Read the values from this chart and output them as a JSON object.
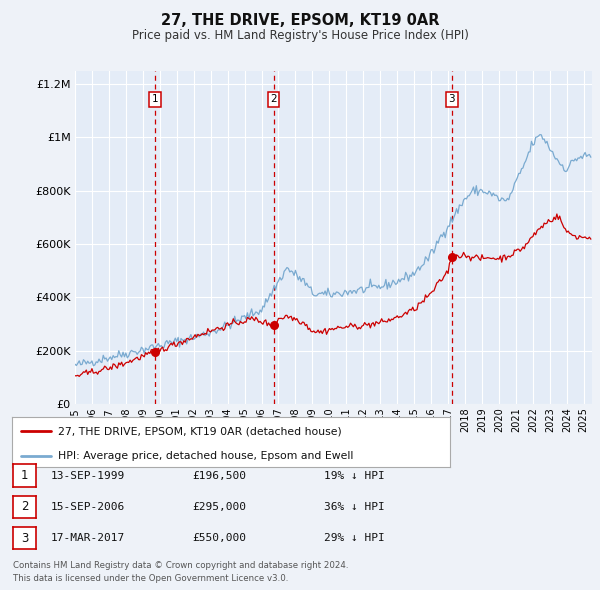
{
  "title": "27, THE DRIVE, EPSOM, KT19 0AR",
  "subtitle": "Price paid vs. HM Land Registry's House Price Index (HPI)",
  "bg_color": "#eef2f8",
  "plot_bg_color": "#e4ecf7",
  "grid_color": "#ffffff",
  "ylim": [
    0,
    1250000
  ],
  "xlim_start": 1995.0,
  "xlim_end": 2025.5,
  "yticks": [
    0,
    200000,
    400000,
    600000,
    800000,
    1000000,
    1200000
  ],
  "ytick_labels": [
    "£0",
    "£200K",
    "£400K",
    "£600K",
    "£800K",
    "£1M",
    "£1.2M"
  ],
  "xticks": [
    1995,
    1996,
    1997,
    1998,
    1999,
    2000,
    2001,
    2002,
    2003,
    2004,
    2005,
    2006,
    2007,
    2008,
    2009,
    2010,
    2011,
    2012,
    2013,
    2014,
    2015,
    2016,
    2017,
    2018,
    2019,
    2020,
    2021,
    2022,
    2023,
    2024,
    2025
  ],
  "sale_color": "#cc0000",
  "hpi_color": "#7aaad0",
  "vline_color": "#cc0000",
  "sale_dates": [
    1999.71,
    2006.71,
    2017.21
  ],
  "sale_prices": [
    196500,
    295000,
    550000
  ],
  "legend_sale_label": "27, THE DRIVE, EPSOM, KT19 0AR (detached house)",
  "legend_hpi_label": "HPI: Average price, detached house, Epsom and Ewell",
  "table_rows": [
    {
      "num": "1",
      "date": "13-SEP-1999",
      "price": "£196,500",
      "hpi": "19% ↓ HPI"
    },
    {
      "num": "2",
      "date": "15-SEP-2006",
      "price": "£295,000",
      "hpi": "36% ↓ HPI"
    },
    {
      "num": "3",
      "date": "17-MAR-2017",
      "price": "£550,000",
      "hpi": "29% ↓ HPI"
    }
  ],
  "footnote": "Contains HM Land Registry data © Crown copyright and database right 2024.\nThis data is licensed under the Open Government Licence v3.0."
}
